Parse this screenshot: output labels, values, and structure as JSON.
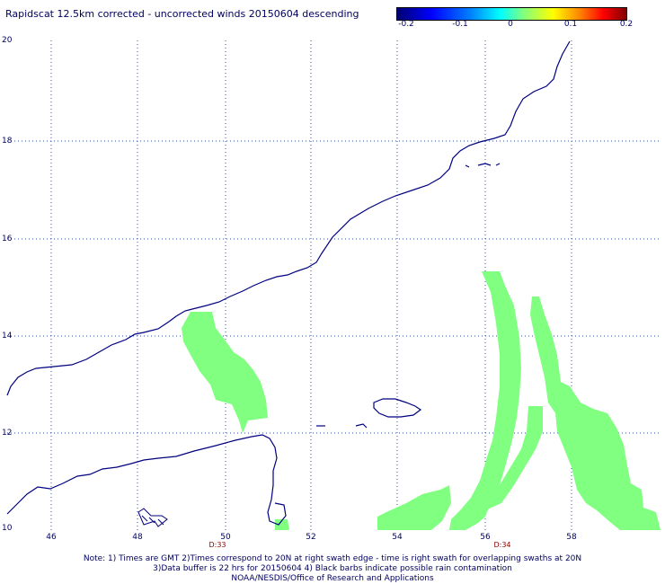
{
  "title": "Rapidscat 12.5km corrected - uncorrected winds 20150604 descending",
  "colorbar": {
    "ticks": [
      "-0.2",
      "-0.1",
      "0",
      "0.1",
      "0.2"
    ],
    "colors": [
      "#000070",
      "#0000ff",
      "#00ffff",
      "#ffff00",
      "#ff0000",
      "#800000"
    ]
  },
  "map": {
    "lat_labels": [
      "20",
      "18",
      "16",
      "14",
      "12",
      "10"
    ],
    "lon_labels": [
      "46",
      "48",
      "50",
      "52",
      "54",
      "56",
      "58"
    ],
    "swath_times": [
      "D:33",
      "D:34"
    ],
    "coast_color": "#000080",
    "patch_color": "#80ff80",
    "grid_color": "#3050a0"
  },
  "notes": {
    "line1": "Note: 1) Times are GMT 2)Times correspond to 20N at right swath edge - time is right swath for overlapping swaths at 20N",
    "line2": "3)Data buffer is 22 hrs for 20150604 4) Black barbs indicate possible rain contamination",
    "line3": "NOAA/NESDIS/Office of Research and Applications"
  }
}
